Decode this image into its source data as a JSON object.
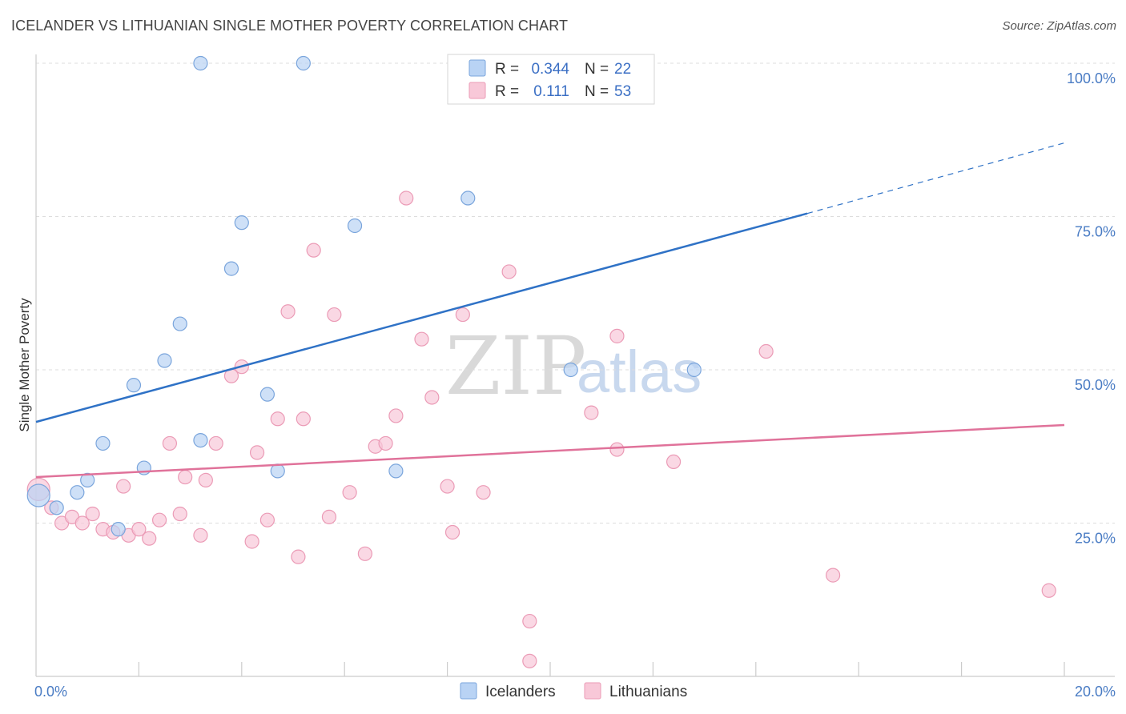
{
  "title": "ICELANDER VS LITHUANIAN SINGLE MOTHER POVERTY CORRELATION CHART",
  "source": "Source: ZipAtlas.com",
  "watermark": {
    "zip": "ZIP",
    "atlas": "atlas"
  },
  "colors": {
    "icelanders_fill": "#b9d3f4",
    "icelanders_stroke": "#7aa5dc",
    "icelanders_line": "#2f72c6",
    "lithuanians_fill": "#f8c8d8",
    "lithuanians_stroke": "#eb9bb6",
    "lithuanians_line": "#e0729a",
    "axis_label": "#4a7cc4",
    "grid": "#dddddd"
  },
  "legend": {
    "rows": [
      {
        "r_label": "R =",
        "r_value": "0.344",
        "n_label": "N =",
        "n_value": "22"
      },
      {
        "r_label": "R =",
        "r_value": "0.111",
        "n_label": "N =",
        "n_value": "53"
      }
    ]
  },
  "chart_data": {
    "type": "scatter",
    "title": "ICELANDER VS LITHUANIAN SINGLE MOTHER POVERTY CORRELATION CHART",
    "xlabel": "",
    "ylabel": "Single Mother Poverty",
    "xlim": [
      0,
      20
    ],
    "ylim": [
      0,
      100
    ],
    "x_ticks": [
      0,
      20
    ],
    "x_tick_labels": [
      "0.0%",
      "20.0%"
    ],
    "y_ticks": [
      25,
      50,
      75,
      100
    ],
    "y_tick_labels": [
      "25.0%",
      "50.0%",
      "75.0%",
      "100.0%"
    ],
    "grid": "horizontal dashed",
    "legend_position": "top-center and bottom",
    "series": [
      {
        "name": "Icelanders",
        "points": [
          [
            0.05,
            29.5
          ],
          [
            0.4,
            27.5
          ],
          [
            0.8,
            30
          ],
          [
            1.0,
            32
          ],
          [
            1.3,
            38
          ],
          [
            1.6,
            24
          ],
          [
            1.9,
            47.5
          ],
          [
            2.1,
            34
          ],
          [
            2.5,
            51.5
          ],
          [
            2.8,
            57.5
          ],
          [
            3.2,
            100
          ],
          [
            3.2,
            38.5
          ],
          [
            3.8,
            66.5
          ],
          [
            4.0,
            74
          ],
          [
            4.5,
            46
          ],
          [
            4.7,
            33.5
          ],
          [
            5.2,
            100
          ],
          [
            6.2,
            73.5
          ],
          [
            7.0,
            33.5
          ],
          [
            8.4,
            78
          ],
          [
            10.4,
            50
          ],
          [
            12.8,
            50
          ]
        ],
        "trend": {
          "x_start": 0,
          "y_start": 41.5,
          "x_solid_end": 15.0,
          "y_solid_end": 75.5,
          "x_end": 20,
          "y_end": 87
        }
      },
      {
        "name": "Lithuanians",
        "points": [
          [
            0.05,
            30.5
          ],
          [
            0.3,
            27.5
          ],
          [
            0.5,
            25
          ],
          [
            0.7,
            26
          ],
          [
            0.9,
            25
          ],
          [
            1.1,
            26.5
          ],
          [
            1.3,
            24
          ],
          [
            1.5,
            23.5
          ],
          [
            1.7,
            31
          ],
          [
            1.8,
            23
          ],
          [
            2.0,
            24
          ],
          [
            2.2,
            22.5
          ],
          [
            2.4,
            25.5
          ],
          [
            2.6,
            38
          ],
          [
            2.8,
            26.5
          ],
          [
            2.9,
            32.5
          ],
          [
            3.2,
            23
          ],
          [
            3.3,
            32
          ],
          [
            3.5,
            38
          ],
          [
            3.8,
            49
          ],
          [
            4.0,
            50.5
          ],
          [
            4.2,
            22
          ],
          [
            4.3,
            36.5
          ],
          [
            4.5,
            25.5
          ],
          [
            4.7,
            42
          ],
          [
            4.9,
            59.5
          ],
          [
            5.1,
            19.5
          ],
          [
            5.2,
            42
          ],
          [
            5.4,
            69.5
          ],
          [
            5.7,
            26
          ],
          [
            5.8,
            59
          ],
          [
            6.1,
            30
          ],
          [
            6.4,
            20
          ],
          [
            6.6,
            37.5
          ],
          [
            6.8,
            38
          ],
          [
            7.0,
            42.5
          ],
          [
            7.2,
            78
          ],
          [
            7.5,
            55
          ],
          [
            7.7,
            45.5
          ],
          [
            8.0,
            31
          ],
          [
            8.1,
            23.5
          ],
          [
            8.3,
            59
          ],
          [
            8.7,
            30
          ],
          [
            9.2,
            66
          ],
          [
            9.6,
            9
          ],
          [
            9.6,
            2.5
          ],
          [
            10.8,
            43
          ],
          [
            11.3,
            55.5
          ],
          [
            11.3,
            37
          ],
          [
            12.4,
            35
          ],
          [
            14.2,
            53
          ],
          [
            15.5,
            16.5
          ],
          [
            19.7,
            14
          ]
        ],
        "trend": {
          "x_start": 0,
          "y_start": 32.5,
          "x_end": 20,
          "y_end": 41
        }
      }
    ]
  },
  "bottom_legend": [
    {
      "label": "Icelanders"
    },
    {
      "label": "Lithuanians"
    }
  ]
}
